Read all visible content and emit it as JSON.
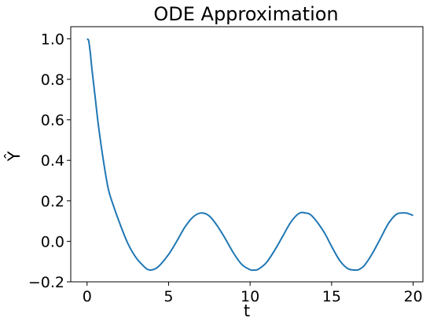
{
  "chart_data": {
    "type": "line",
    "title": "ODE Approximation",
    "xlabel": "t",
    "ylabel": "Ŷ",
    "xlim": [
      -1.0,
      20.6
    ],
    "ylim": [
      -0.2,
      1.06
    ],
    "grid": false,
    "legend": "none",
    "x_ticks": [
      0,
      5,
      10,
      15,
      20
    ],
    "x_tick_labels": [
      "0",
      "5",
      "10",
      "15",
      "20"
    ],
    "y_ticks": [
      -0.2,
      0.0,
      0.2,
      0.4,
      0.6,
      0.8,
      1.0
    ],
    "y_tick_labels": [
      "−0.2",
      "0.0",
      "0.2",
      "0.4",
      "0.6",
      "0.8",
      "1.0"
    ],
    "colors": {
      "line": "#1f77b4",
      "axes": "#000000",
      "background": "#ffffff"
    },
    "series": [
      {
        "x": [
          0,
          0.1,
          0.2,
          0.3,
          0.5,
          0.7,
          1.0,
          1.3,
          1.6,
          2.0,
          2.5,
          3.0,
          3.5,
          3.7,
          3.9,
          4.2,
          4.5,
          5.0,
          5.5,
          6.0,
          6.5,
          7.0,
          7.5,
          8.0,
          8.5,
          9.0,
          9.5,
          10.0,
          10.25,
          10.5,
          11.0,
          11.5,
          12.0,
          12.5,
          13.0,
          13.4,
          13.8,
          14.5,
          15.0,
          15.5,
          16.0,
          16.5,
          16.7,
          17.0,
          17.5,
          18.0,
          18.5,
          19.0,
          19.5,
          19.7,
          20.0
        ],
        "y": [
          1.0,
          0.99,
          0.93,
          0.85,
          0.71,
          0.57,
          0.4,
          0.26,
          0.18,
          0.09,
          -0.01,
          -0.08,
          -0.125,
          -0.138,
          -0.142,
          -0.135,
          -0.115,
          -0.065,
          0.0,
          0.07,
          0.12,
          0.14,
          0.125,
          0.075,
          0.01,
          -0.06,
          -0.115,
          -0.14,
          -0.142,
          -0.138,
          -0.105,
          -0.045,
          0.025,
          0.095,
          0.138,
          0.14,
          0.125,
          0.05,
          -0.025,
          -0.095,
          -0.135,
          -0.142,
          -0.138,
          -0.12,
          -0.06,
          0.015,
          0.09,
          0.135,
          0.14,
          0.137,
          0.128
        ]
      }
    ]
  }
}
